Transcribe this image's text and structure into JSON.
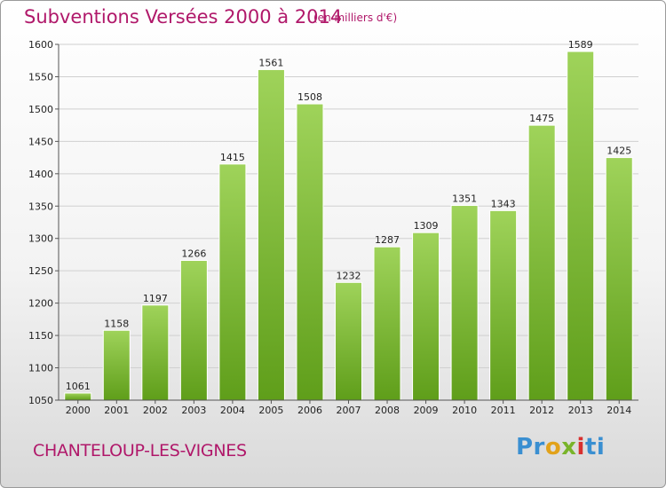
{
  "title": "Subventions Versées 2000 à 2014",
  "unit": "(en milliers d'€)",
  "commune": "CHANTELOUP-LES-VIGNES",
  "brand": {
    "parts": [
      "Pr",
      "o",
      "x",
      "i",
      "ti"
    ],
    "colors": [
      "#3a8fd1",
      "#e2a21a",
      "#79b42a",
      "#d8302f",
      "#3a8fd1"
    ]
  },
  "colors": {
    "text_accent": "#b0186a",
    "bar_top": "#9fd35a",
    "bar_bottom": "#5f9e1a",
    "grid": "#d0d0d0",
    "axis": "#555555"
  },
  "chart_data": {
    "type": "bar",
    "title": "Subventions Versées 2000 à 2014",
    "xlabel": "",
    "ylabel": "",
    "categories": [
      "2000",
      "2001",
      "2002",
      "2003",
      "2004",
      "2005",
      "2006",
      "2007",
      "2008",
      "2009",
      "2010",
      "2011",
      "2012",
      "2013",
      "2014"
    ],
    "values": [
      1061,
      1158,
      1197,
      1266,
      1415,
      1561,
      1508,
      1232,
      1287,
      1309,
      1351,
      1343,
      1475,
      1589,
      1425
    ],
    "ylim": [
      1050,
      1600
    ],
    "yticks": [
      1050,
      1100,
      1150,
      1200,
      1250,
      1300,
      1350,
      1400,
      1450,
      1500,
      1550,
      1600
    ],
    "grid": true,
    "legend": "none"
  }
}
